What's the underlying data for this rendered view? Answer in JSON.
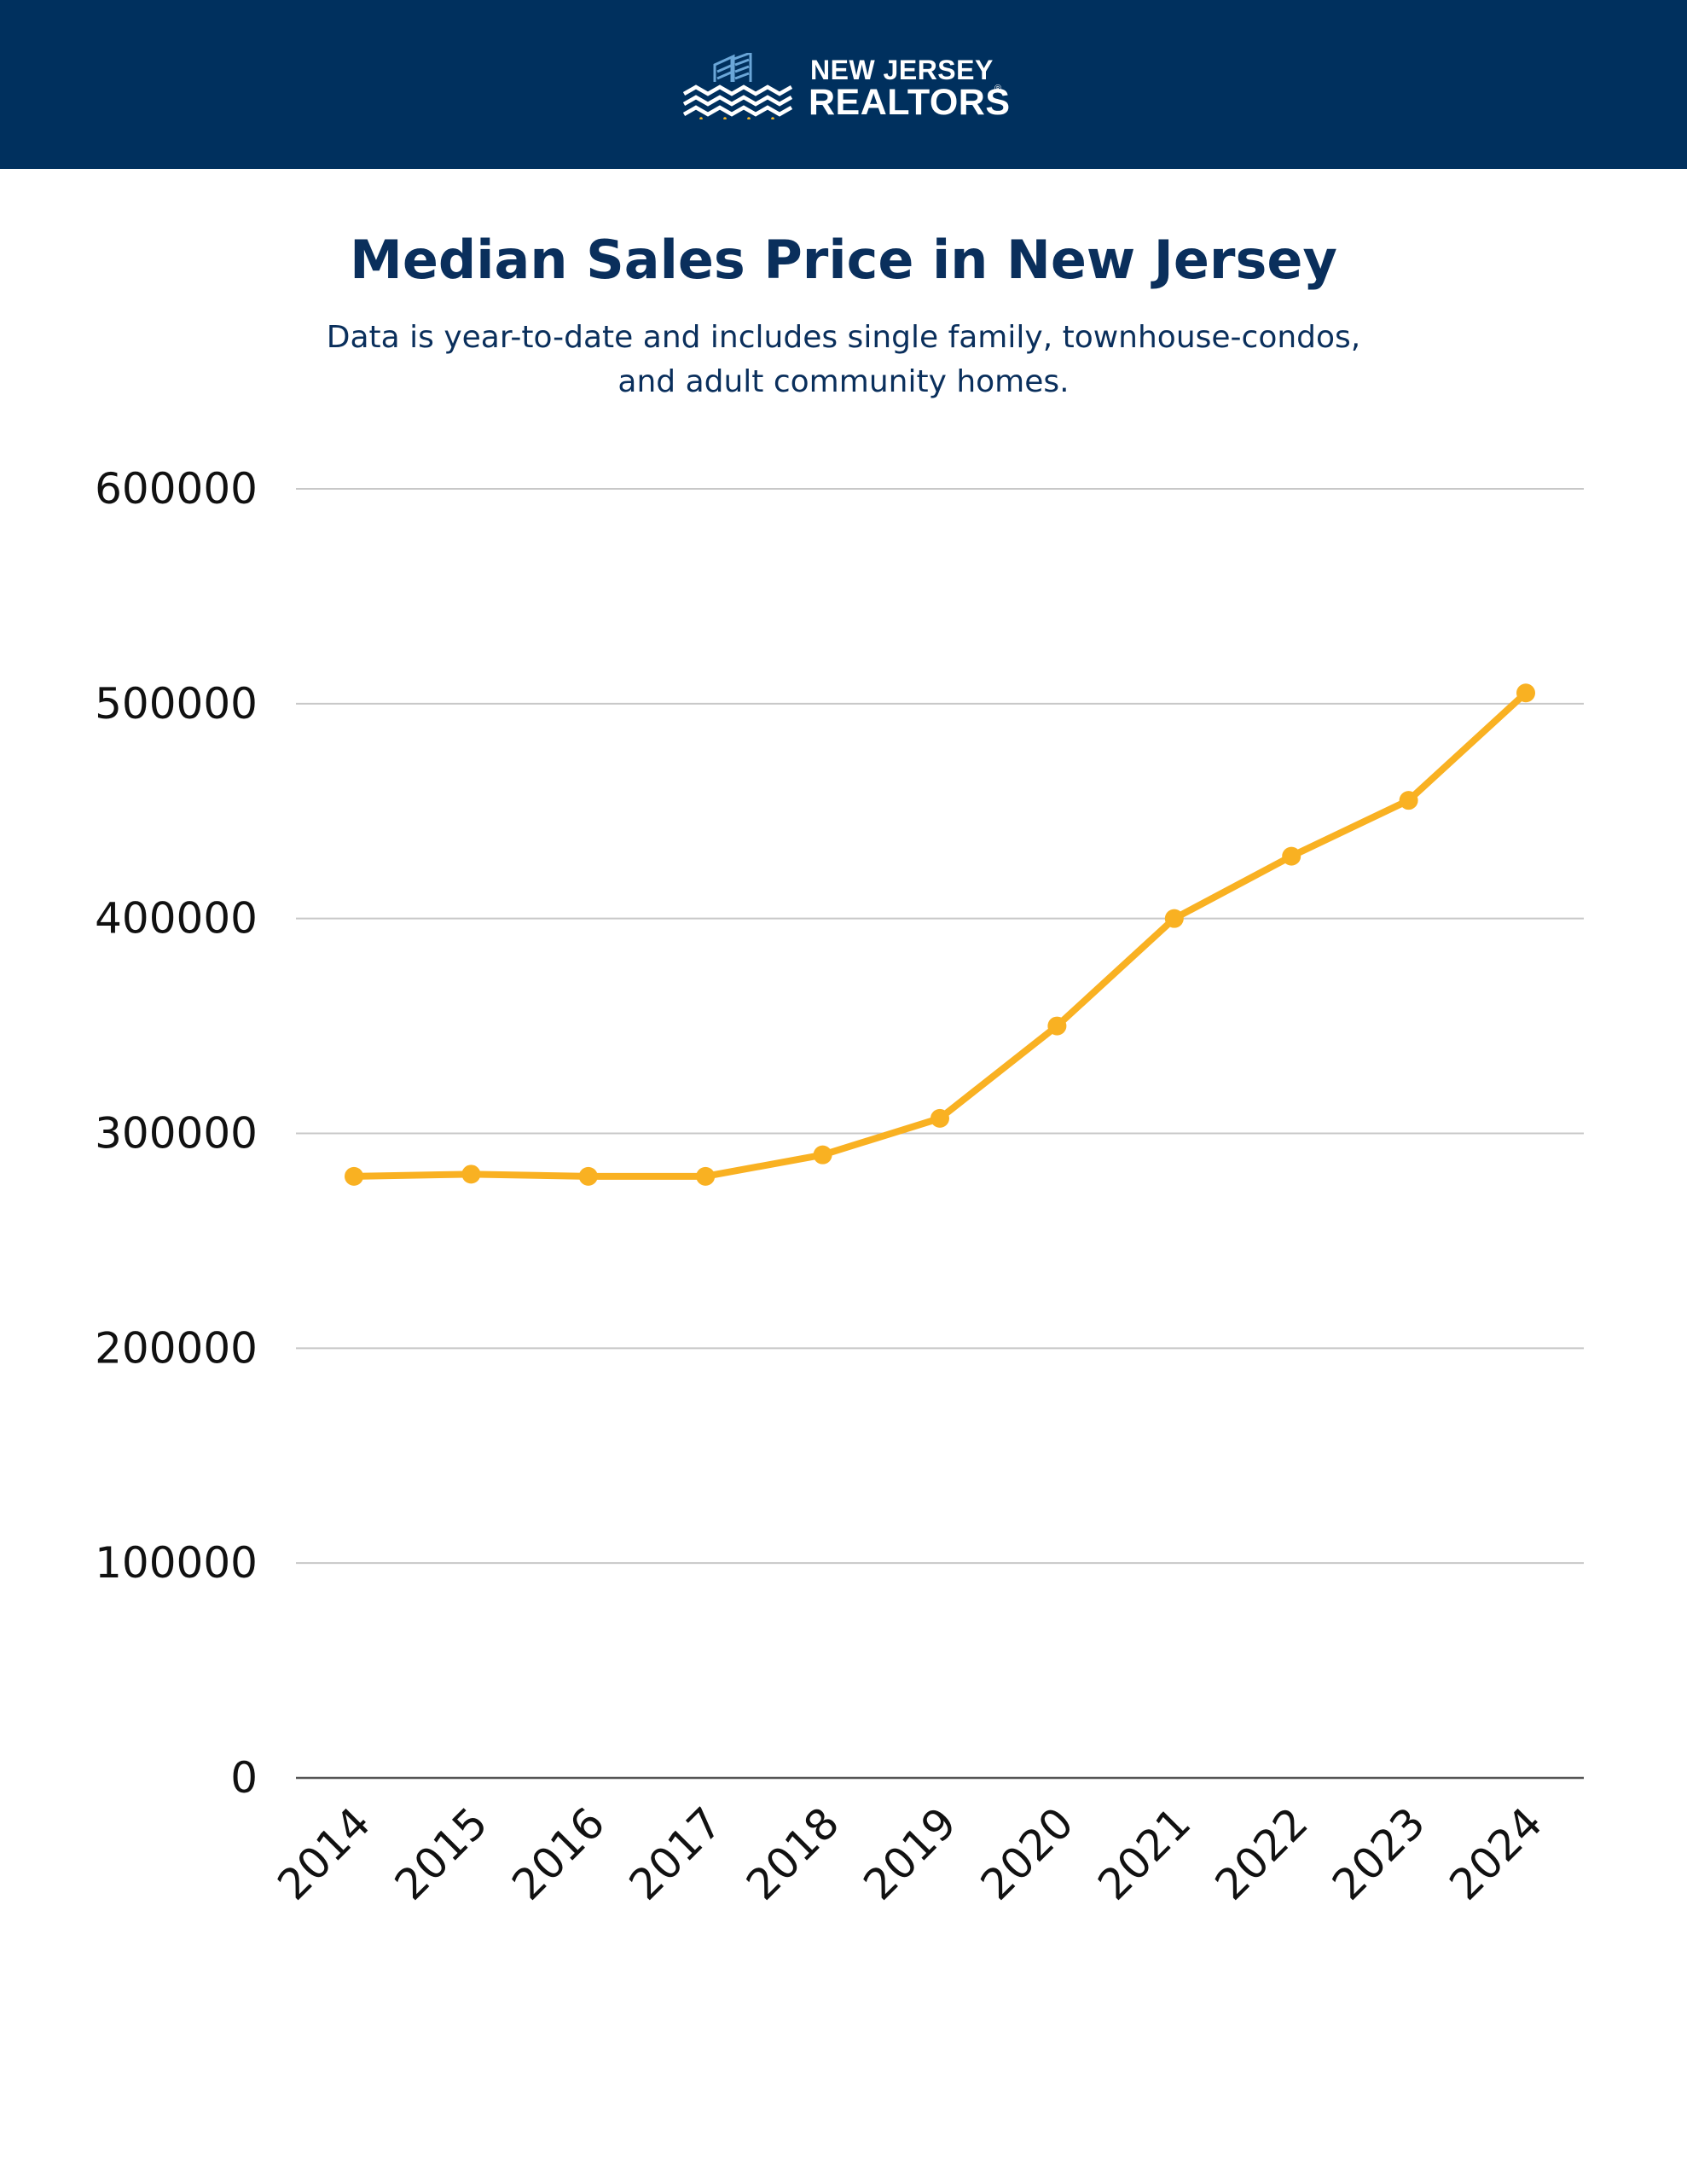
{
  "brand": {
    "line1": "NEW JERSEY",
    "line2": "REALTORS",
    "registered_mark": "®",
    "header_color": "#00305e",
    "logo_accent": "#f7b626"
  },
  "title": "Median Sales Price in New Jersey",
  "subtitle_line1": "Data is year-to-date and includes single family, townhouse-condos,",
  "subtitle_line2": "and adult community homes.",
  "chart_data": {
    "type": "line",
    "title": "Median Sales Price in New Jersey",
    "xlabel": "",
    "ylabel": "",
    "categories": [
      "2014",
      "2015",
      "2016",
      "2017",
      "2018",
      "2019",
      "2020",
      "2021",
      "2022",
      "2023",
      "2024"
    ],
    "series": [
      {
        "values": [
          280000,
          281000,
          280000,
          280000,
          290000,
          307000,
          350000,
          400000,
          429000,
          455000,
          505000
        ],
        "color": "#f9b122"
      }
    ],
    "ylim": [
      0,
      600000
    ],
    "yticks": [
      0,
      100000,
      200000,
      300000,
      400000,
      500000,
      600000
    ],
    "ytick_labels": [
      "0",
      "100000",
      "200000",
      "300000",
      "400000",
      "500000",
      "600000"
    ],
    "grid": true,
    "legend": "none"
  }
}
